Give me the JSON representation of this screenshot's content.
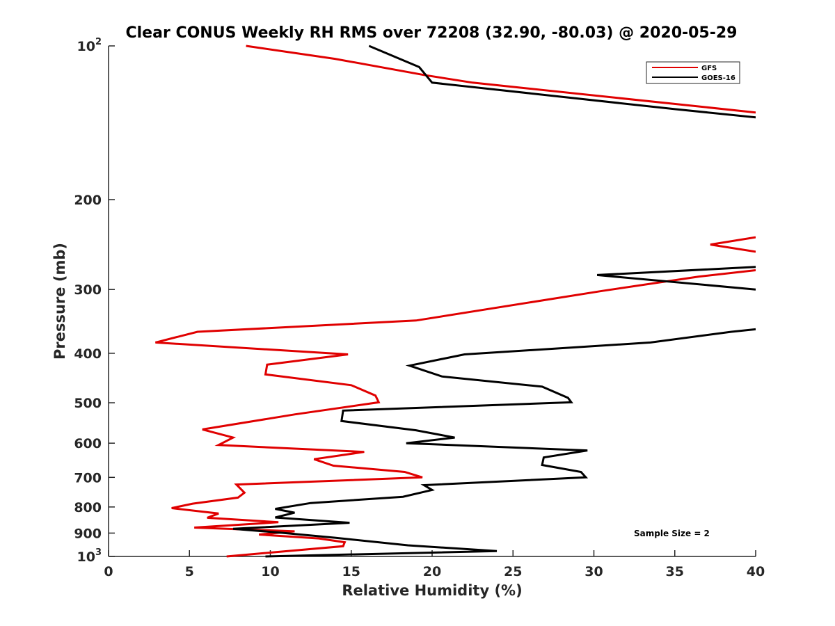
{
  "chart_data": {
    "type": "line",
    "title": "Clear CONUS Weekly RH RMS over 72208 (32.90, -80.03) @ 2020-05-29",
    "xlabel": "Relative Humidity (%)",
    "ylabel": "Pressure (mb)",
    "xlim": [
      0,
      40
    ],
    "ylim": [
      100,
      1000
    ],
    "y_scale": "log",
    "y_reversed": true,
    "grid": false,
    "x_ticks": [
      0,
      5,
      10,
      15,
      20,
      25,
      30,
      35,
      40
    ],
    "x_tick_labels": [
      "0",
      "5",
      "10",
      "15",
      "20",
      "25",
      "30",
      "35",
      "40"
    ],
    "y_ticks": [
      100,
      200,
      300,
      400,
      500,
      600,
      700,
      800,
      900,
      1000
    ],
    "y_tick_labels": [
      "10^2",
      "200",
      "300",
      "400",
      "500",
      "600",
      "700",
      "800",
      "900",
      "10^3"
    ],
    "legend_position": "top-right",
    "series": [
      {
        "name": "GFS",
        "color": "#e00000",
        "points": [
          [
            8.5,
            100
          ],
          [
            14,
            106
          ],
          [
            19.5,
            114
          ],
          [
            22.5,
            118
          ],
          [
            40,
            135
          ],
          [
            null,
            null
          ],
          [
            40,
            237
          ],
          [
            37.2,
            245
          ],
          [
            40,
            253
          ],
          [
            null,
            null
          ],
          [
            40,
            275
          ],
          [
            36.5,
            283
          ],
          [
            30.5,
            302
          ],
          [
            19,
            345
          ],
          [
            5.5,
            363
          ],
          [
            2.9,
            381
          ],
          [
            14.8,
            402
          ],
          [
            9.8,
            421
          ],
          [
            9.7,
            440
          ],
          [
            15,
            462
          ],
          [
            16.5,
            484
          ],
          [
            16.7,
            499
          ],
          [
            11.5,
            527
          ],
          [
            5.8,
            564
          ],
          [
            7.7,
            585
          ],
          [
            6.8,
            605
          ],
          [
            15.8,
            624
          ],
          [
            12.7,
            645
          ],
          [
            13.9,
            664
          ],
          [
            18.3,
            683
          ],
          [
            19.4,
            700
          ],
          [
            7.9,
            723
          ],
          [
            8.4,
            750
          ],
          [
            8,
            767
          ],
          [
            5.2,
            788
          ],
          [
            3.9,
            804
          ],
          [
            6.8,
            824
          ],
          [
            6.1,
            840
          ],
          [
            10.5,
            857
          ],
          [
            5.3,
            878
          ],
          [
            11.5,
            893
          ],
          [
            9.3,
            906
          ],
          [
            13,
            922
          ],
          [
            14.6,
            938
          ],
          [
            14.5,
            955
          ],
          [
            7.3,
            1000
          ]
        ]
      },
      {
        "name": "GOES-16",
        "color": "#000000",
        "points": [
          [
            16.1,
            100
          ],
          [
            19.2,
            110
          ],
          [
            20,
            118
          ],
          [
            35,
            133
          ],
          [
            40,
            138
          ],
          [
            null,
            null
          ],
          [
            40,
            271
          ],
          [
            30.2,
            281
          ],
          [
            40,
            300
          ],
          [
            null,
            null
          ],
          [
            40,
            359
          ],
          [
            38.5,
            363
          ],
          [
            33.5,
            381
          ],
          [
            22,
            402
          ],
          [
            18.6,
            423
          ],
          [
            20.6,
            444
          ],
          [
            26.8,
            465
          ],
          [
            28.4,
            489
          ],
          [
            28.6,
            499
          ],
          [
            14.5,
            518
          ],
          [
            14.4,
            543
          ],
          [
            19,
            566
          ],
          [
            21.4,
            585
          ],
          [
            18.4,
            600
          ],
          [
            29.6,
            620
          ],
          [
            26.9,
            640
          ],
          [
            26.8,
            662
          ],
          [
            29.2,
            683
          ],
          [
            29.5,
            700
          ],
          [
            19.5,
            725
          ],
          [
            20,
            741
          ],
          [
            18.2,
            764
          ],
          [
            12.5,
            786
          ],
          [
            10.3,
            807
          ],
          [
            11.5,
            821
          ],
          [
            10.3,
            839
          ],
          [
            14.9,
            859
          ],
          [
            7.7,
            883
          ],
          [
            10.6,
            898
          ],
          [
            14,
            919
          ],
          [
            18.5,
            951
          ],
          [
            24,
            976
          ],
          [
            9.7,
            1000
          ]
        ]
      }
    ],
    "annotation": "Sample Size = 2"
  }
}
